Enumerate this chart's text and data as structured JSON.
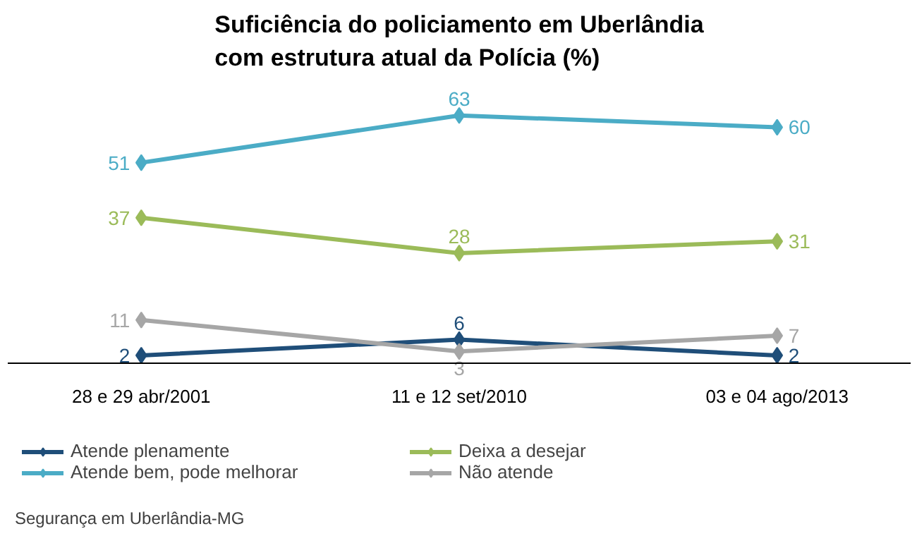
{
  "chart_data": {
    "type": "line",
    "title": "Suficiência do policiamento em Uberlândia com estrutura atual da Polícia (%)",
    "categories": [
      "28 e 29 abr/2001",
      "11 e 12 set/2010",
      "03 e 04 ago/2013"
    ],
    "series": [
      {
        "name": "Atende plenamente",
        "color": "#1f4e79",
        "values": [
          2,
          6,
          2
        ]
      },
      {
        "name": "Atende bem, pode melhorar",
        "color": "#4bacc6",
        "values": [
          51,
          63,
          60
        ]
      },
      {
        "name": "Deixa a desejar",
        "color": "#9bbb59",
        "values": [
          37,
          28,
          31
        ]
      },
      {
        "name": "Não atende",
        "color": "#a6a6a6",
        "values": [
          11,
          3,
          7
        ]
      }
    ],
    "data_labels": true,
    "marker": "diamond",
    "grid": false,
    "legend": "bottom",
    "line_style": "solid",
    "annotations": [
      "Segurança em Uberlândia-MG"
    ]
  }
}
